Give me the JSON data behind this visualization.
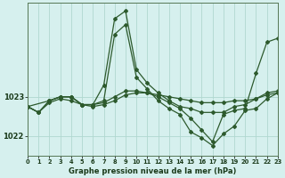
{
  "background_color": "#d6f0ee",
  "grid_color": "#b0d8d0",
  "line_color": "#2d5a2d",
  "marker_color": "#2d5a2d",
  "title": "Graphe pression niveau de la mer (hPa)",
  "xlim": [
    0,
    23
  ],
  "ylim": [
    1021.5,
    1025.4
  ],
  "yticks": [
    1022,
    1023
  ],
  "xticks": [
    0,
    1,
    2,
    3,
    4,
    5,
    6,
    7,
    8,
    9,
    10,
    11,
    12,
    13,
    14,
    15,
    16,
    17,
    18,
    19,
    20,
    21,
    22,
    23
  ],
  "series": [
    {
      "x": [
        0,
        1,
        2,
        3,
        4,
        5,
        6,
        7,
        8,
        9,
        10,
        11,
        12,
        13,
        14,
        15,
        16,
        17,
        18,
        19,
        20,
        21,
        22,
        23
      ],
      "y": [
        1022.75,
        1022.6,
        1022.85,
        1022.95,
        1022.9,
        1022.8,
        1022.75,
        1022.8,
        1022.9,
        1023.05,
        1023.1,
        1023.1,
        1023.05,
        1023.0,
        1022.95,
        1022.9,
        1022.85,
        1022.85,
        1022.85,
        1022.9,
        1022.9,
        1022.95,
        1023.05,
        1023.1
      ]
    },
    {
      "x": [
        0,
        1,
        2,
        3,
        4,
        5,
        6,
        7,
        8,
        9,
        10,
        11,
        12,
        13,
        14,
        15,
        16,
        17,
        18,
        19,
        20,
        21,
        22,
        23
      ],
      "y": [
        1022.75,
        1022.6,
        1022.9,
        1023.0,
        1023.0,
        1022.8,
        1022.8,
        1023.3,
        1025.0,
        1025.2,
        1023.7,
        1023.35,
        1023.1,
        1022.9,
        1022.75,
        1022.7,
        1022.6,
        1022.6,
        1022.6,
        1022.75,
        1022.8,
        1022.95,
        1023.1,
        1023.15
      ]
    },
    {
      "x": [
        0,
        2,
        3,
        4,
        5,
        6,
        7,
        8,
        9,
        10,
        11,
        12,
        13,
        14,
        15,
        16,
        17,
        18,
        19,
        20,
        21,
        22,
        23
      ],
      "y": [
        1022.75,
        1022.9,
        1023.0,
        1023.0,
        1022.8,
        1022.8,
        1022.9,
        1024.6,
        1024.85,
        1023.5,
        1023.2,
        1022.9,
        1022.7,
        1022.55,
        1022.1,
        1021.95,
        1021.75,
        1022.05,
        1022.25,
        1022.65,
        1022.7,
        1022.95,
        1023.1
      ]
    },
    {
      "x": [
        0,
        1,
        2,
        3,
        4,
        5,
        6,
        7,
        8,
        9,
        10,
        11,
        12,
        13,
        14,
        15,
        16,
        17,
        18,
        19,
        20,
        21,
        22,
        23
      ],
      "y": [
        1022.75,
        1022.6,
        1022.9,
        1023.0,
        1023.0,
        1022.8,
        1022.8,
        1022.85,
        1023.0,
        1023.15,
        1023.15,
        1023.1,
        1023.0,
        1022.85,
        1022.7,
        1022.45,
        1022.15,
        1021.85,
        1022.55,
        1022.65,
        1022.7,
        1023.6,
        1024.4,
        1024.5
      ]
    }
  ]
}
